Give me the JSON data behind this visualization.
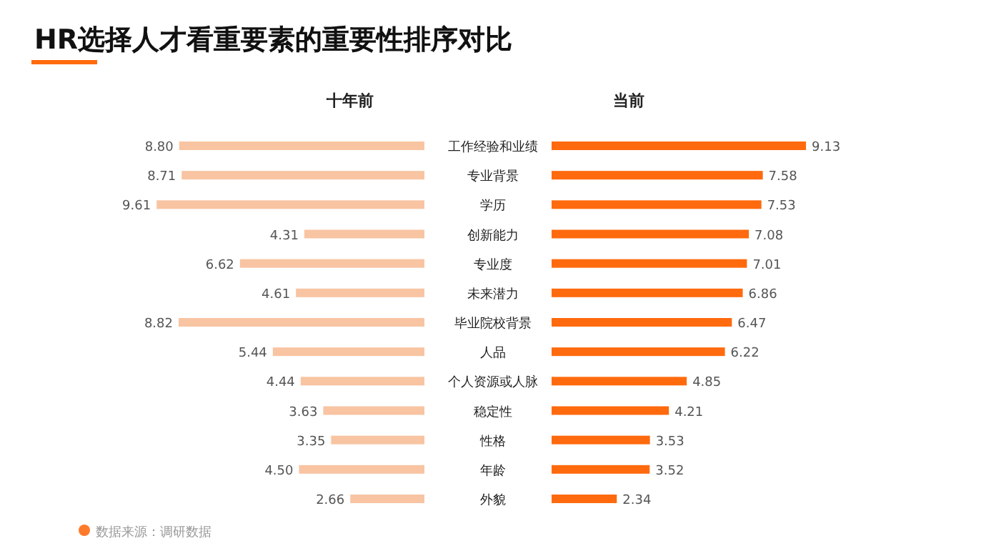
{
  "chart_data": [
    {
      "type": "bar",
      "orientation": "horizontal",
      "title": "HR选择人才看重要素的重要性排序对比",
      "categories": [
        "工作经验和业绩",
        "专业背景",
        "学历",
        "创新能力",
        "专业度",
        "未来潜力",
        "毕业院校背景",
        "人品",
        "个人资源或人脉",
        "稳定性",
        "性格",
        "年龄",
        "外貌"
      ],
      "series": [
        {
          "name": "十年前",
          "color": "#f8c4a2",
          "values": [
            8.8,
            8.71,
            9.61,
            4.31,
            6.62,
            4.61,
            8.82,
            5.44,
            4.44,
            3.63,
            3.35,
            4.5,
            2.66
          ],
          "value_labels": [
            "8.80",
            "8.71",
            "9.61",
            "4.31",
            "6.62",
            "4.61",
            "8.82",
            "5.44",
            "4.44",
            "3.63",
            "3.35",
            "4.50",
            "2.66"
          ]
        }
      ],
      "annotations": [
        "数据来源：调研数据"
      ]
    },
    {
      "type": "bar",
      "orientation": "horizontal",
      "tick_labels": false,
      "categories": [
        "工作经验和业绩",
        "专业背景",
        "学历",
        "创新能力",
        "专业度",
        "未来潜力",
        "毕业院校背景",
        "人品",
        "个人资源或人脉",
        "稳定性",
        "性格",
        "年龄",
        "外貌"
      ],
      "series": [
        {
          "name": "当前",
          "color": "#ff6a0e",
          "values": [
            9.13,
            7.58,
            7.53,
            7.08,
            7.01,
            6.86,
            6.47,
            6.22,
            4.85,
            4.21,
            3.53,
            3.52,
            2.34
          ],
          "value_labels": [
            "9.13",
            "7.58",
            "7.53",
            "7.08",
            "7.01",
            "6.86",
            "6.47",
            "6.22",
            "4.85",
            "4.21",
            "3.53",
            "3.52",
            "2.34"
          ]
        }
      ]
    }
  ]
}
